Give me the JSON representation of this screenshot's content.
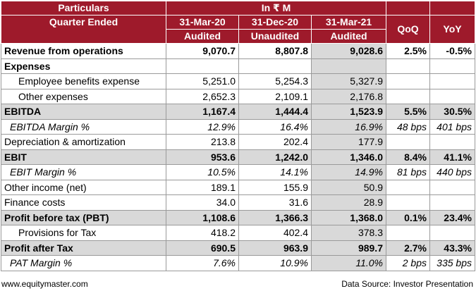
{
  "header": {
    "particulars": "Particulars",
    "unit": "In ₹ M",
    "quarter_ended": "Quarter Ended",
    "dates": [
      "31-Mar-20",
      "31-Dec-20",
      "31-Mar-21"
    ],
    "audit": [
      "Audited",
      "Unaudited",
      "Audited"
    ],
    "qoq": "QoQ",
    "yoy": "YoY"
  },
  "rows": [
    {
      "label": "Revenue from operations",
      "v1": "9,070.7",
      "v2": "8,807.8",
      "v3": "9,028.6",
      "qoq": "2.5%",
      "yoy": "-0.5%"
    },
    {
      "label": "Expenses",
      "v1": "",
      "v2": "",
      "v3": "",
      "qoq": "",
      "yoy": ""
    },
    {
      "label": "Employee benefits expense",
      "v1": "5,251.0",
      "v2": "5,254.3",
      "v3": "5,327.9",
      "qoq": "",
      "yoy": ""
    },
    {
      "label": "Other expenses",
      "v1": "2,652.3",
      "v2": "2,109.1",
      "v3": "2,176.8",
      "qoq": "",
      "yoy": ""
    },
    {
      "label": "EBITDA",
      "v1": "1,167.4",
      "v2": "1,444.4",
      "v3": "1,523.9",
      "qoq": "5.5%",
      "yoy": "30.5%"
    },
    {
      "label": "EBITDA Margin %",
      "v1": "12.9%",
      "v2": "16.4%",
      "v3": "16.9%",
      "qoq": "48 bps",
      "yoy": "401 bps"
    },
    {
      "label": "Depreciation & amortization",
      "v1": "213.8",
      "v2": "202.4",
      "v3": "177.9",
      "qoq": "",
      "yoy": ""
    },
    {
      "label": "EBIT",
      "v1": "953.6",
      "v2": "1,242.0",
      "v3": "1,346.0",
      "qoq": "8.4%",
      "yoy": "41.1%"
    },
    {
      "label": "EBIT Margin %",
      "v1": "10.5%",
      "v2": "14.1%",
      "v3": "14.9%",
      "qoq": "81 bps",
      "yoy": "440 bps"
    },
    {
      "label": "Other income (net)",
      "v1": "189.1",
      "v2": "155.9",
      "v3": "50.9",
      "qoq": "",
      "yoy": ""
    },
    {
      "label": "Finance costs",
      "v1": "34.0",
      "v2": "31.6",
      "v3": "28.9",
      "qoq": "",
      "yoy": ""
    },
    {
      "label": "Profit before tax (PBT)",
      "v1": "1,108.6",
      "v2": "1,366.3",
      "v3": "1,368.0",
      "qoq": "0.1%",
      "yoy": "23.4%"
    },
    {
      "label": "Provisions for Tax",
      "v1": "418.2",
      "v2": "402.4",
      "v3": "378.3",
      "qoq": "",
      "yoy": ""
    },
    {
      "label": "Profit after Tax",
      "v1": "690.5",
      "v2": "963.9",
      "v3": "989.7",
      "qoq": "2.7%",
      "yoy": "43.3%"
    },
    {
      "label": "PAT Margin %",
      "v1": "7.6%",
      "v2": "10.9%",
      "v3": "11.0%",
      "qoq": "2 bps",
      "yoy": "335 bps"
    }
  ],
  "footer": {
    "website": "www.equitymaster.com",
    "source": "Data Source: Investor Presentation"
  },
  "colors": {
    "header_bg": "#9e1a2b",
    "shade": "#d9d9d9"
  }
}
